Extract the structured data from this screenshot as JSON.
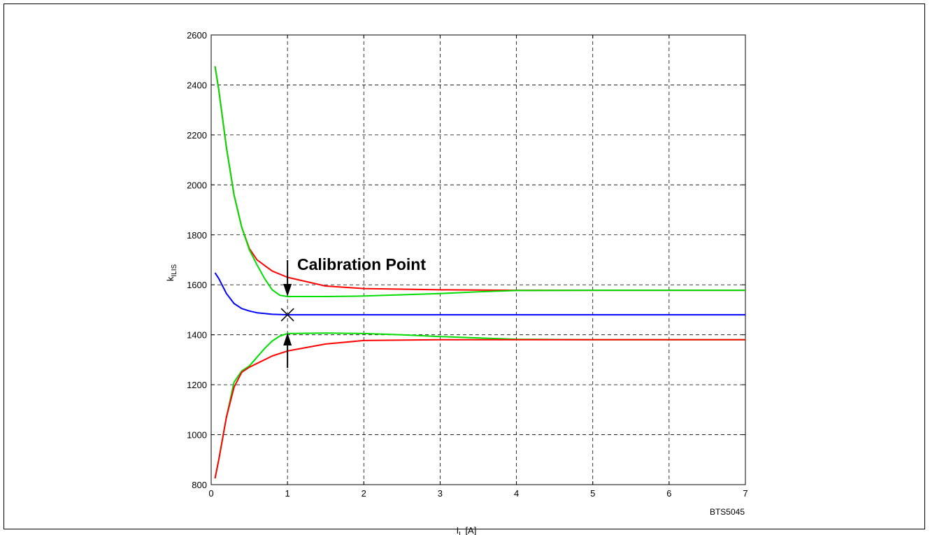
{
  "chart_data": {
    "type": "line",
    "xlabel": {
      "main": "I",
      "sub": "L",
      "unit": " [A]"
    },
    "ylabel": {
      "main": "k",
      "sub": "ILIS"
    },
    "xlim": [
      0,
      7
    ],
    "ylim": [
      800,
      2600
    ],
    "x_ticks": [
      "0",
      "1",
      "2",
      "3",
      "4",
      "5",
      "6",
      "7"
    ],
    "y_ticks": [
      "800",
      "1000",
      "1200",
      "1400",
      "1600",
      "1800",
      "2000",
      "2200",
      "2400",
      "2600"
    ],
    "grid": true,
    "annotation": "Calibration Point",
    "calibration_point": {
      "x": 1,
      "y": 1480
    },
    "figure_id": "BTS5045",
    "series": [
      {
        "color": "#ff0000",
        "x": [
          0.05,
          0.1,
          0.2,
          0.3,
          0.4,
          0.5,
          0.6,
          0.8,
          1.0,
          1.5,
          2.0,
          3.0,
          4.0,
          5.0,
          6.0,
          7.0
        ],
        "y": [
          2475,
          2380,
          2150,
          1960,
          1830,
          1745,
          1700,
          1655,
          1630,
          1595,
          1585,
          1580,
          1578,
          1578,
          1578,
          1578
        ]
      },
      {
        "color": "#00dd00",
        "x": [
          0.05,
          0.1,
          0.2,
          0.3,
          0.4,
          0.5,
          0.6,
          0.7,
          0.8,
          0.9,
          1.0,
          1.5,
          2.0,
          2.5,
          3.0,
          3.5,
          4.0,
          5.0,
          6.0,
          7.0
        ],
        "y": [
          2475,
          2380,
          2150,
          1960,
          1830,
          1740,
          1680,
          1625,
          1580,
          1558,
          1553,
          1553,
          1555,
          1560,
          1565,
          1572,
          1577,
          1578,
          1578,
          1578
        ]
      },
      {
        "color": "#0000ff",
        "x": [
          0.05,
          0.1,
          0.2,
          0.3,
          0.4,
          0.5,
          0.6,
          0.8,
          1.0,
          2.0,
          3.0,
          4.0,
          5.0,
          6.0,
          7.0
        ],
        "y": [
          1648,
          1625,
          1565,
          1525,
          1505,
          1495,
          1488,
          1482,
          1480,
          1480,
          1480,
          1480,
          1480,
          1480,
          1480
        ]
      },
      {
        "color": "#00dd00",
        "x": [
          0.05,
          0.1,
          0.2,
          0.3,
          0.4,
          0.5,
          0.6,
          0.7,
          0.8,
          0.9,
          1.0,
          1.5,
          2.0,
          2.5,
          3.0,
          3.5,
          4.0,
          5.0,
          6.0,
          7.0
        ],
        "y": [
          825,
          900,
          1070,
          1210,
          1255,
          1275,
          1310,
          1345,
          1375,
          1395,
          1405,
          1407,
          1405,
          1400,
          1393,
          1387,
          1382,
          1380,
          1380,
          1380
        ]
      },
      {
        "color": "#ff0000",
        "x": [
          0.05,
          0.1,
          0.2,
          0.3,
          0.4,
          0.5,
          0.6,
          0.8,
          1.0,
          1.5,
          2.0,
          3.0,
          4.0,
          5.0,
          6.0,
          7.0
        ],
        "y": [
          825,
          900,
          1070,
          1190,
          1250,
          1270,
          1285,
          1315,
          1335,
          1363,
          1377,
          1380,
          1380,
          1380,
          1380,
          1380
        ]
      }
    ]
  }
}
